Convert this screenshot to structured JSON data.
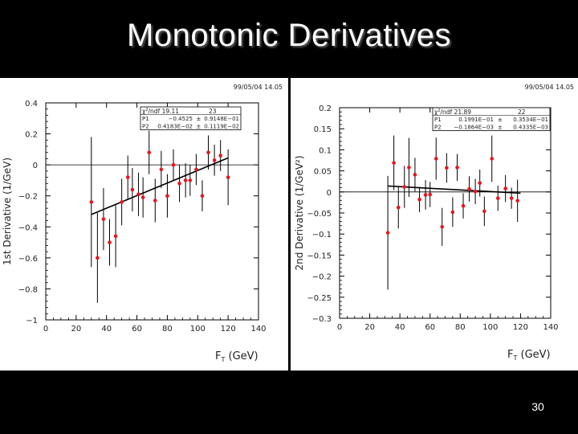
{
  "slide": {
    "title": "Monotonic Derivatives",
    "page_number": "30"
  },
  "chart_data": [
    {
      "type": "scatter",
      "timestamp": "99/05/04  14.05",
      "ylabel": "1st Derivative (1/GeV)",
      "xlabel": {
        "prefix": "F",
        "sub": "T",
        "suffix": " (GeV)"
      },
      "xlim": [
        0,
        140
      ],
      "ylim": [
        -1,
        0.4
      ],
      "xticks": [
        0,
        20,
        40,
        60,
        80,
        100,
        120,
        140
      ],
      "yticks": [
        -1,
        -0.8,
        -0.6,
        -0.4,
        -0.2,
        0,
        0.2,
        0.4
      ],
      "ytick_labels": [
        "−1",
        "−0.8",
        "−0.6",
        "−0.4",
        "−0.2",
        "0",
        "0.2",
        "0.4"
      ],
      "reference_line": 0,
      "stats": {
        "chi2_label": "/ndf",
        "chi2_value": "19.11",
        "ndf": "23",
        "rows": [
          {
            "name": "P1",
            "value": "−0.4525",
            "pm": "±",
            "error": "0.9148E−01"
          },
          {
            "name": "P2",
            "value": "0.4183E−02",
            "pm": "±",
            "error": "0.1119E−02"
          }
        ]
      },
      "fit": {
        "x": [
          30,
          120
        ],
        "y": [
          -0.32,
          0.045
        ]
      },
      "points": [
        {
          "x": 30,
          "y": -0.24,
          "err": 0.42
        },
        {
          "x": 34,
          "y": -0.6,
          "err": 0.29
        },
        {
          "x": 38,
          "y": -0.35,
          "err": 0.2
        },
        {
          "x": 42,
          "y": -0.5,
          "err": 0.15
        },
        {
          "x": 46,
          "y": -0.46,
          "err": 0.2
        },
        {
          "x": 50,
          "y": -0.24,
          "err": 0.15
        },
        {
          "x": 54,
          "y": -0.08,
          "err": 0.14
        },
        {
          "x": 57,
          "y": -0.16,
          "err": 0.14
        },
        {
          "x": 61,
          "y": -0.19,
          "err": 0.14
        },
        {
          "x": 64,
          "y": -0.21,
          "err": 0.13
        },
        {
          "x": 68,
          "y": 0.08,
          "err": 0.14
        },
        {
          "x": 72,
          "y": -0.23,
          "err": 0.14
        },
        {
          "x": 76,
          "y": -0.03,
          "err": 0.12
        },
        {
          "x": 80,
          "y": -0.2,
          "err": 0.14
        },
        {
          "x": 84,
          "y": 0.0,
          "err": 0.1
        },
        {
          "x": 88,
          "y": -0.12,
          "err": 0.12
        },
        {
          "x": 92,
          "y": -0.1,
          "err": 0.11
        },
        {
          "x": 95,
          "y": -0.1,
          "err": 0.1
        },
        {
          "x": 99,
          "y": -0.03,
          "err": 0.1
        },
        {
          "x": 103,
          "y": -0.2,
          "err": 0.1
        },
        {
          "x": 107,
          "y": 0.08,
          "err": 0.11
        },
        {
          "x": 111,
          "y": 0.03,
          "err": 0.1
        },
        {
          "x": 115,
          "y": 0.06,
          "err": 0.1
        },
        {
          "x": 120,
          "y": -0.08,
          "err": 0.18
        }
      ]
    },
    {
      "type": "scatter",
      "timestamp": "99/05/04  14.05",
      "ylabel": "2nd Derivative (1/GeV²)",
      "xlabel": {
        "prefix": "F",
        "sub": "T",
        "suffix": " (GeV)"
      },
      "xlim": [
        0,
        140
      ],
      "ylim": [
        -0.3,
        0.2
      ],
      "xticks": [
        0,
        20,
        40,
        60,
        80,
        100,
        120,
        140
      ],
      "yticks": [
        -0.3,
        -0.25,
        -0.2,
        -0.15,
        -0.1,
        -0.05,
        0,
        0.05,
        0.1,
        0.15,
        0.2
      ],
      "ytick_labels": [
        "−0.3",
        "−0.25",
        "−0.2",
        "−0.15",
        "−0.1",
        "−0.05",
        "0",
        "0.05",
        "0.1",
        "0.15",
        "0.2"
      ],
      "reference_line": 0,
      "stats": {
        "chi2_label": "/ndf",
        "chi2_value": "21.89",
        "ndf": "22",
        "rows": [
          {
            "name": "P1",
            "value": "0.1991E−01",
            "pm": "±",
            "error": "0.3534E−01"
          },
          {
            "name": "P2",
            "value": "−0.1864E−03",
            "pm": "±",
            "error": "0.4335E−03"
          }
        ]
      },
      "fit": {
        "x": [
          32,
          120
        ],
        "y": [
          0.014,
          -0.003
        ]
      },
      "points": [
        {
          "x": 32,
          "y": -0.097,
          "err": 0.135
        },
        {
          "x": 36,
          "y": 0.069,
          "err": 0.065
        },
        {
          "x": 39,
          "y": -0.037,
          "err": 0.05
        },
        {
          "x": 43,
          "y": 0.012,
          "err": 0.05
        },
        {
          "x": 46,
          "y": 0.058,
          "err": 0.07
        },
        {
          "x": 50,
          "y": 0.041,
          "err": 0.04
        },
        {
          "x": 53,
          "y": -0.018,
          "err": 0.03
        },
        {
          "x": 57,
          "y": -0.007,
          "err": 0.035
        },
        {
          "x": 60,
          "y": -0.006,
          "err": 0.03
        },
        {
          "x": 64,
          "y": 0.079,
          "err": 0.05
        },
        {
          "x": 68,
          "y": -0.083,
          "err": 0.045
        },
        {
          "x": 71,
          "y": 0.057,
          "err": 0.035
        },
        {
          "x": 75,
          "y": -0.048,
          "err": 0.035
        },
        {
          "x": 78,
          "y": 0.058,
          "err": 0.032
        },
        {
          "x": 82,
          "y": -0.033,
          "err": 0.03
        },
        {
          "x": 86,
          "y": 0.007,
          "err": 0.03
        },
        {
          "x": 90,
          "y": 0.001,
          "err": 0.03
        },
        {
          "x": 93,
          "y": 0.021,
          "err": 0.032
        },
        {
          "x": 96,
          "y": -0.046,
          "err": 0.035
        },
        {
          "x": 101,
          "y": 0.079,
          "err": 0.055
        },
        {
          "x": 105,
          "y": -0.015,
          "err": 0.03
        },
        {
          "x": 110,
          "y": 0.008,
          "err": 0.032
        },
        {
          "x": 114,
          "y": -0.015,
          "err": 0.025
        },
        {
          "x": 118,
          "y": -0.021,
          "err": 0.05
        }
      ]
    }
  ]
}
